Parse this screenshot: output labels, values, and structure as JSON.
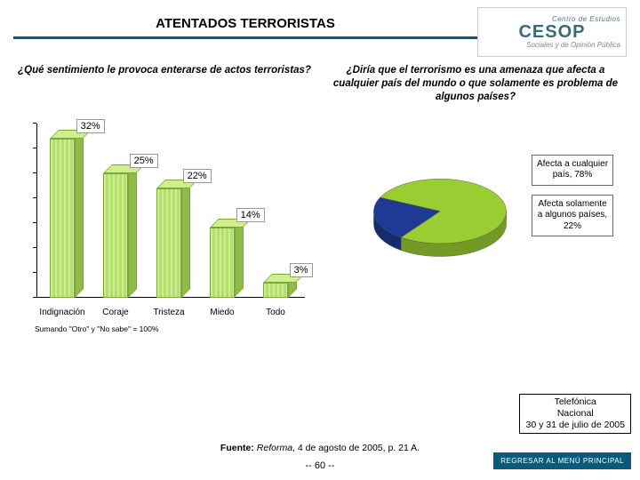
{
  "header": {
    "title": "ATENTADOS TERRORISTAS",
    "logo_top": "Centro de Estudios",
    "logo_main": "CESOP",
    "logo_bottom": "Sociales y de Opinión Pública",
    "rule_color": "#0a5a7a"
  },
  "questions": {
    "left": "¿Qué sentimiento le provoca enterarse de actos terroristas?",
    "right": "¿Diría que el terrorismo es una amenaza que afecta a cualquier país del mundo o que solamente es problema de algunos países?"
  },
  "bar_chart": {
    "type": "bar",
    "categories": [
      "Indignación",
      "Coraje",
      "Tristeza",
      "Miedo",
      "Todo"
    ],
    "values": [
      32,
      25,
      22,
      14,
      3
    ],
    "value_labels": [
      "32%",
      "25%",
      "22%",
      "14%",
      "3%"
    ],
    "ylim": [
      0,
      35
    ],
    "bar_fill": "#b3e066",
    "bar_side": "#8fbb44",
    "bar_top": "#cdef8c",
    "bar_border": "#7aa838",
    "background_color": "#ffffff",
    "note": "Sumando \"Otro\" y \"No sabe\" = 100%"
  },
  "pie_chart": {
    "type": "pie",
    "slices": [
      {
        "label": "Afecta a cualquier país, 78%",
        "value": 78,
        "color": "#9acd32"
      },
      {
        "label": "Afecta solamente a algunos países, 22%",
        "value": 22,
        "color": "#1f3a93"
      }
    ],
    "background_color": "#ffffff"
  },
  "footer": {
    "info_line1": "Telefónica",
    "info_line2": "Nacional",
    "info_line3": "30 y 31 de julio de 2005",
    "source_label": "Fuente:",
    "source_text": "Reforma",
    "source_rest": ", 4 de agosto de 2005, p. 21 A.",
    "page": "-- 60 --",
    "menu_button": "REGRESAR AL MENÚ PRINCIPAL",
    "menu_bg": "#0a5a7a"
  }
}
